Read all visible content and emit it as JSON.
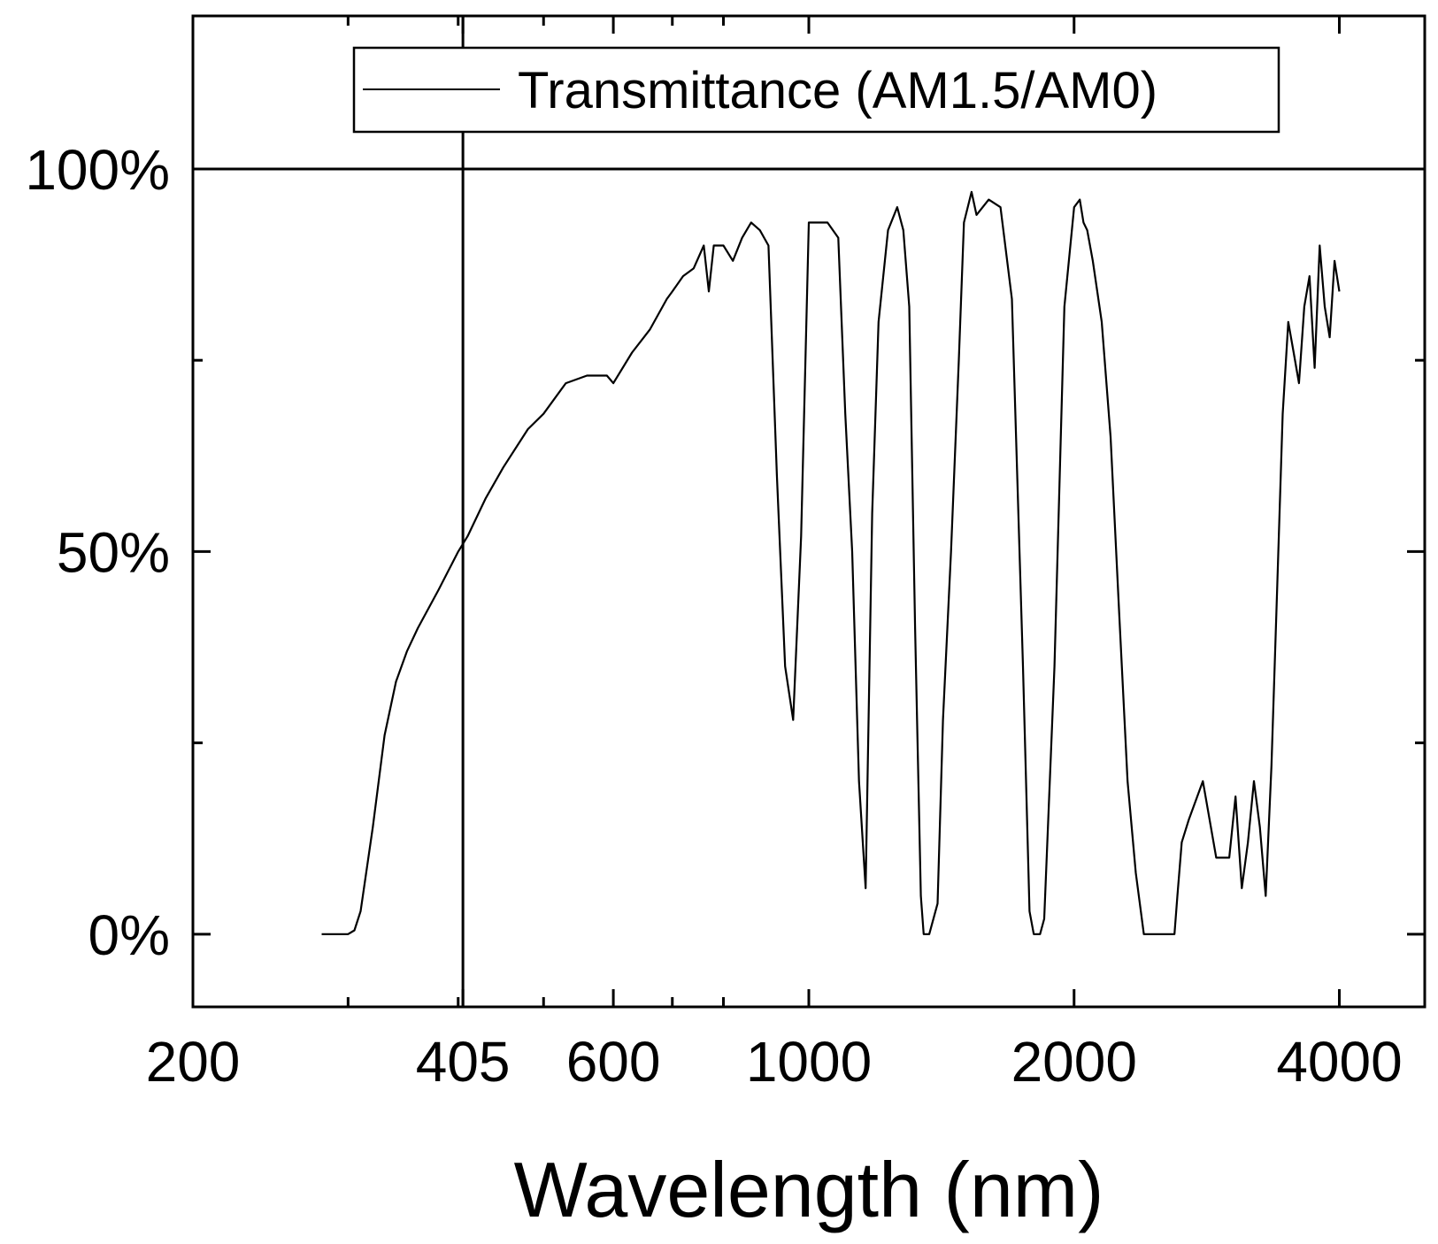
{
  "chart_data": {
    "type": "line",
    "xscale": "log",
    "xlabel": "Wavelength (nm)",
    "ylabel": "",
    "xlim": [
      200,
      5000
    ],
    "ylim": [
      -0.095,
      1.2
    ],
    "x_ticks": [
      200,
      405,
      600,
      1000,
      2000,
      4000
    ],
    "x_tick_labels": [
      "200",
      "405",
      "600",
      "1000",
      "2000",
      "4000"
    ],
    "x_minor_ticks": [
      300,
      400,
      500,
      700,
      800
    ],
    "y_ticks": [
      0,
      0.5,
      1.0
    ],
    "y_tick_labels": [
      "0%",
      "50%",
      "100%"
    ],
    "y_minor_ticks": [
      0.25,
      0.75
    ],
    "reference_lines": [
      {
        "orientation": "vertical",
        "x": 405
      },
      {
        "orientation": "horizontal",
        "y": 1.0
      }
    ],
    "legend": {
      "position": "top-center",
      "entries": [
        "Transmittance (AM1.5/AM0)"
      ]
    },
    "series": [
      {
        "name": "Transmittance (AM1.5/AM0)",
        "color": "#000000",
        "x": [
          280,
          300,
          305,
          310,
          320,
          330,
          340,
          350,
          360,
          380,
          400,
          410,
          430,
          450,
          480,
          500,
          530,
          560,
          590,
          600,
          630,
          660,
          690,
          700,
          720,
          740,
          760,
          770,
          780,
          800,
          820,
          840,
          860,
          880,
          900,
          920,
          940,
          960,
          980,
          1000,
          1050,
          1080,
          1100,
          1120,
          1140,
          1160,
          1180,
          1200,
          1230,
          1260,
          1280,
          1300,
          1320,
          1340,
          1350,
          1370,
          1400,
          1420,
          1450,
          1480,
          1500,
          1530,
          1550,
          1600,
          1650,
          1700,
          1750,
          1780,
          1800,
          1830,
          1850,
          1900,
          1950,
          2000,
          2030,
          2050,
          2070,
          2100,
          2150,
          2200,
          2250,
          2300,
          2350,
          2400,
          2450,
          2480,
          2500,
          2550,
          2600,
          2620,
          2650,
          2700,
          2800,
          2900,
          3000,
          3050,
          3100,
          3150,
          3200,
          3250,
          3300,
          3350,
          3400,
          3450,
          3500,
          3550,
          3600,
          3650,
          3700,
          3750,
          3800,
          3850,
          3900,
          3950,
          4000
        ],
        "y": [
          0,
          0,
          0.005,
          0.03,
          0.14,
          0.26,
          0.33,
          0.37,
          0.4,
          0.45,
          0.5,
          0.52,
          0.57,
          0.61,
          0.66,
          0.68,
          0.72,
          0.73,
          0.73,
          0.72,
          0.76,
          0.79,
          0.83,
          0.84,
          0.86,
          0.87,
          0.9,
          0.84,
          0.9,
          0.9,
          0.88,
          0.91,
          0.93,
          0.92,
          0.9,
          0.6,
          0.35,
          0.28,
          0.52,
          0.93,
          0.93,
          0.91,
          0.68,
          0.5,
          0.2,
          0.06,
          0.55,
          0.8,
          0.92,
          0.95,
          0.92,
          0.82,
          0.4,
          0.05,
          0,
          0,
          0.04,
          0.28,
          0.5,
          0.75,
          0.93,
          0.97,
          0.94,
          0.96,
          0.95,
          0.83,
          0.35,
          0.03,
          0,
          0,
          0.02,
          0.35,
          0.82,
          0.95,
          0.96,
          0.93,
          0.92,
          0.88,
          0.8,
          0.65,
          0.42,
          0.2,
          0.08,
          0,
          0,
          0,
          0,
          0,
          0,
          0.05,
          0.12,
          0.15,
          0.2,
          0.1,
          0.1,
          0.18,
          0.06,
          0.12,
          0.2,
          0.14,
          0.05,
          0.22,
          0.45,
          0.68,
          0.8,
          0.76,
          0.72,
          0.82,
          0.86,
          0.74,
          0.9,
          0.82,
          0.78,
          0.88,
          0.84
        ]
      }
    ]
  }
}
